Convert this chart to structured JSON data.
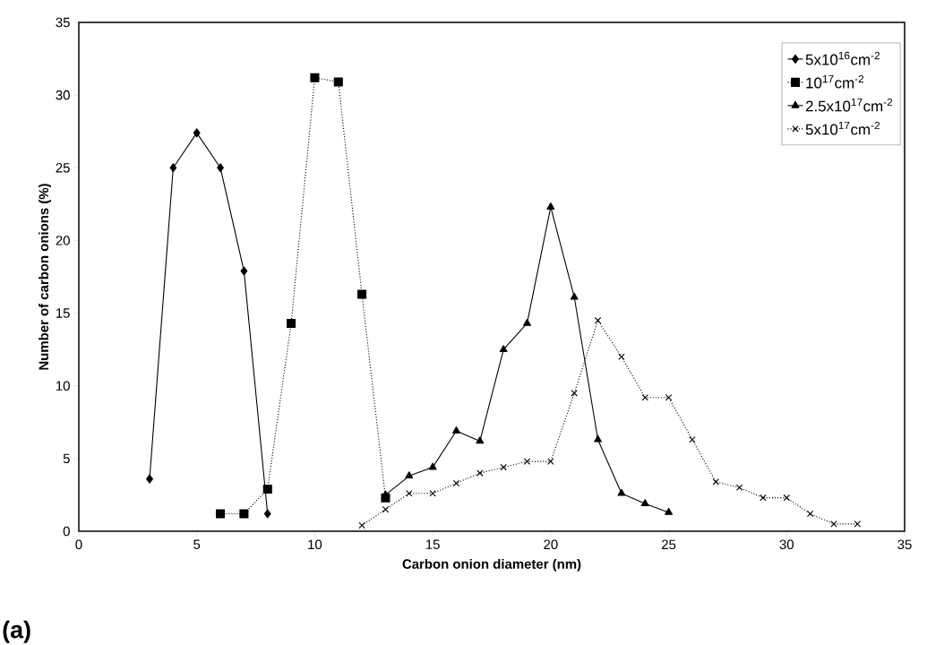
{
  "chart_data": {
    "type": "line",
    "xlabel": "Carbon onion diameter (nm)",
    "ylabel": "Number of carbon onions (%)",
    "annotations": [
      "(a)"
    ],
    "xlim": [
      0,
      35
    ],
    "ylim": [
      0,
      35
    ],
    "xticks": [
      0,
      5,
      10,
      15,
      20,
      25,
      30,
      35
    ],
    "yticks": [
      0,
      5,
      10,
      15,
      20,
      25,
      30,
      35
    ],
    "grid": false,
    "legend": "top right",
    "series": [
      {
        "name": "5x10$^{16}$cm$^{-2}$",
        "color": "#000000",
        "marker": "diamond",
        "line_style": "solid",
        "x": [
          3,
          4,
          5,
          6,
          7,
          8
        ],
        "values": [
          3.6,
          25,
          27.4,
          25,
          17.9,
          1.2
        ]
      },
      {
        "name": "10$^{17}$cm$^{-2}$",
        "color": "#000000",
        "marker": "square",
        "line_style": "dotted",
        "x": [
          6,
          7,
          8,
          9,
          10,
          11,
          12,
          13
        ],
        "values": [
          1.2,
          1.2,
          2.9,
          14.3,
          31.2,
          30.9,
          16.3,
          2.3
        ]
      },
      {
        "name": "2.5x10$^{17}$cm$^{-2}$",
        "color": "#000000",
        "marker": "triangle",
        "line_style": "solid",
        "x": [
          13,
          14,
          15,
          16,
          17,
          18,
          19,
          20,
          21,
          22,
          23,
          24,
          25
        ],
        "values": [
          2.5,
          3.8,
          4.4,
          6.9,
          6.2,
          12.5,
          14.3,
          22.3,
          16.1,
          6.3,
          2.6,
          1.9,
          1.3
        ]
      },
      {
        "name": "5x10$^{17}$cm$^{-2}$",
        "color": "#000000",
        "marker": "cross",
        "line_style": "dotted",
        "x": [
          12,
          13,
          14,
          15,
          16,
          17,
          18,
          19,
          20,
          21,
          22,
          23,
          24,
          25,
          26,
          27,
          28,
          29,
          30,
          31,
          32,
          33
        ],
        "values": [
          0.4,
          1.5,
          2.6,
          2.6,
          3.3,
          4.0,
          4.4,
          4.8,
          4.8,
          9.5,
          14.5,
          12.0,
          9.2,
          9.2,
          6.3,
          3.4,
          3.0,
          2.3,
          2.3,
          1.2,
          0.5,
          0.5
        ]
      }
    ]
  }
}
